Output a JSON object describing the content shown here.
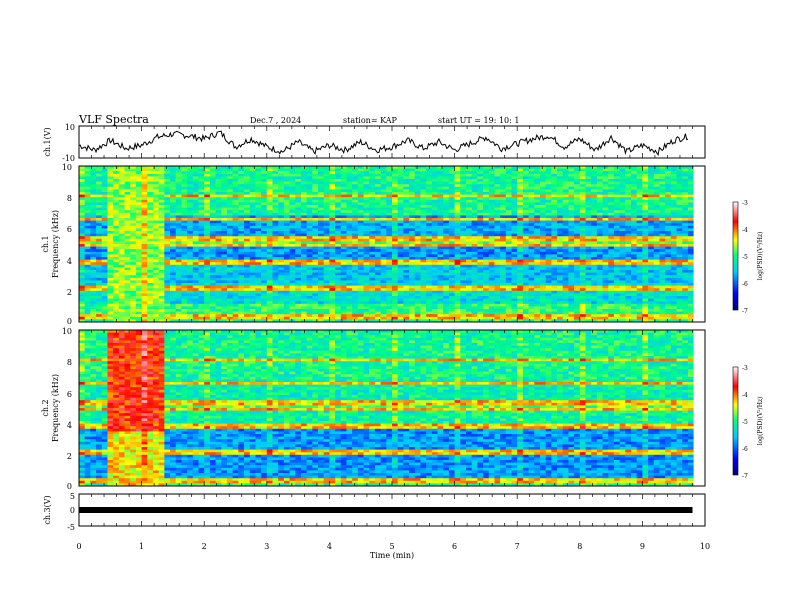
{
  "header": {
    "title": "VLF Spectra",
    "date": "Dec.7 , 2024",
    "station": "station= KAP",
    "start": "start  UT =   19: 10: 1"
  },
  "chart_data": [
    {
      "type": "line",
      "ylabel": "ch.1(V)",
      "ylim": [
        -10,
        10
      ],
      "ytick_labels": [
        "10",
        "-10"
      ],
      "xlim": [
        0,
        10
      ],
      "description_series": "waveform amplitude fluctuating roughly between -8 and 8 V over 0-9.8 min",
      "series": [
        {
          "x": [
            0,
            0.25,
            0.5,
            0.75,
            1,
            1.25,
            1.5,
            1.75,
            2,
            2.25,
            2.5,
            2.75,
            3,
            3.25,
            3.5,
            3.75,
            4,
            4.25,
            4.5,
            4.75,
            5,
            5.25,
            5.5,
            5.75,
            6,
            6.25,
            6.5,
            6.75,
            7,
            7.25,
            7.5,
            7.75,
            8,
            8.25,
            8.5,
            8.75,
            9,
            9.25,
            9.5,
            9.75
          ],
          "values": [
            -2,
            -5,
            1,
            -4,
            -2,
            3,
            5,
            4,
            2,
            6,
            -3,
            2,
            -3,
            -6,
            0,
            -6,
            -2,
            -5,
            0,
            -5,
            -3,
            1,
            -4,
            0,
            -5,
            -1,
            3,
            -4,
            -1,
            2,
            4,
            -3,
            2,
            -5,
            3,
            -6,
            -2,
            -6,
            1,
            4
          ]
        }
      ]
    },
    {
      "type": "heatmap",
      "ylabel": "Frequency (kHz)",
      "channel_label": "ch.1",
      "ylim": [
        0,
        10
      ],
      "ytick_labels": [
        "0",
        "2",
        "4",
        "6",
        "8",
        "10"
      ],
      "xlim": [
        0,
        10
      ],
      "colorbar": {
        "label": "log(PSD)(V²/Hz)",
        "range": [
          -7,
          -3
        ],
        "tick_labels": [
          "-3",
          "-4",
          "-5",
          "-6",
          "-7"
        ]
      }
    },
    {
      "type": "heatmap",
      "ylabel": "Frequency (kHz)",
      "channel_label": "ch.2",
      "ylim": [
        0,
        10
      ],
      "ytick_labels": [
        "0",
        "2",
        "4",
        "6",
        "8",
        "10"
      ],
      "xlim": [
        0,
        10
      ],
      "colorbar": {
        "label": "log(PSD)(V²/Hz)",
        "range": [
          -7,
          -3
        ],
        "tick_labels": [
          "-3",
          "-4",
          "-5",
          "-6",
          "-7"
        ]
      }
    },
    {
      "type": "line",
      "ylabel": "ch.3(V)",
      "ylim": [
        -5,
        5
      ],
      "ytick_labels": [
        "5",
        "0",
        "-5"
      ],
      "xlim": [
        0,
        10
      ],
      "series": [
        {
          "x": [
            0,
            9.8
          ],
          "values": [
            0,
            0
          ]
        }
      ]
    }
  ],
  "xaxis": {
    "label": "Time  (min)",
    "tick_labels": [
      "0",
      "1",
      "2",
      "3",
      "4",
      "5",
      "6",
      "7",
      "8",
      "9",
      "10"
    ]
  },
  "colors": {
    "scale": [
      "#000080",
      "#0000ff",
      "#00c8ff",
      "#00ff80",
      "#ffff00",
      "#ff0000",
      "#ffffff"
    ]
  }
}
